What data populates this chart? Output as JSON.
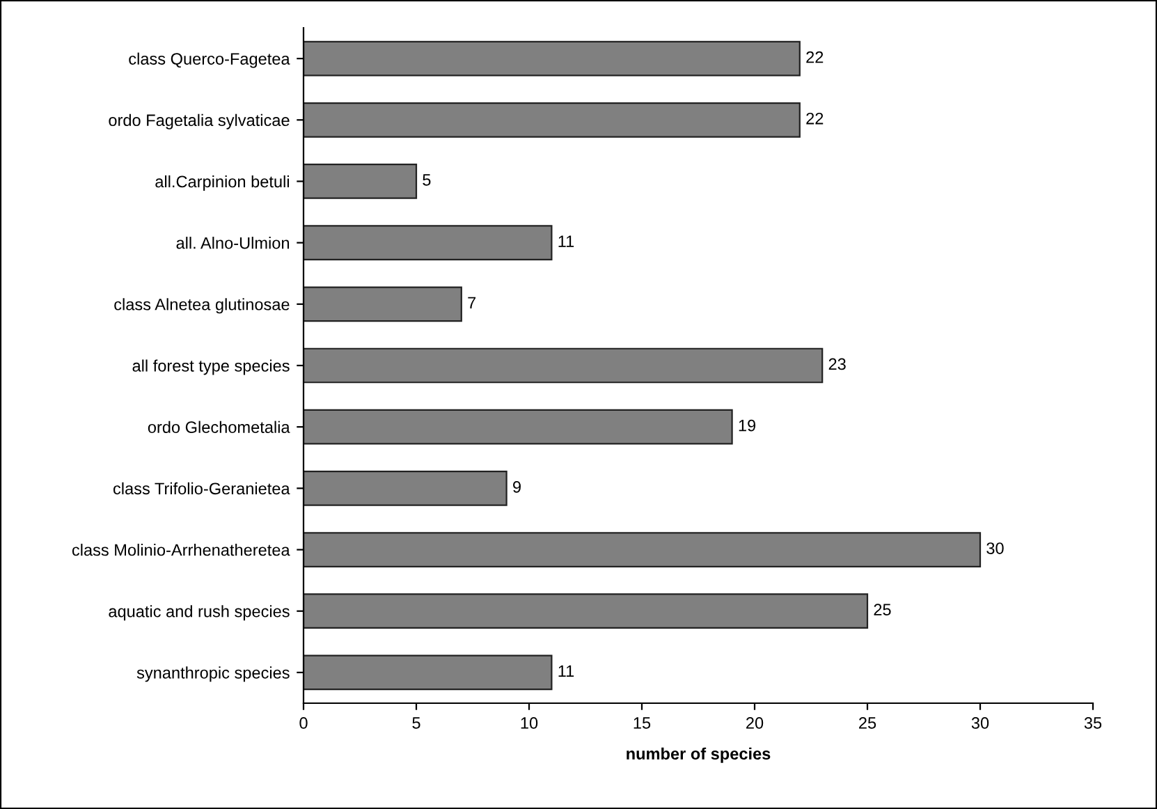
{
  "chart_data": {
    "type": "bar",
    "orientation": "horizontal",
    "xlabel": "number of species",
    "categories": [
      "class Querco-Fagetea",
      "ordo Fagetalia sylvaticae",
      "all.Carpinion betuli",
      "all. Alno-Ulmion",
      "class Alnetea glutinosae",
      "all forest type species",
      "ordo Glechometalia",
      "class Trifolio-Geranietea",
      "class Molinio-Arrhenatheretea",
      "aquatic and rush species",
      "synanthropic species"
    ],
    "values": [
      22,
      22,
      5,
      11,
      7,
      23,
      19,
      9,
      30,
      25,
      11
    ],
    "color": "#808080",
    "xlim": [
      0,
      35
    ],
    "xticks": [
      0,
      5,
      10,
      15,
      20,
      25,
      30,
      35
    ],
    "data_labels": true,
    "grid": false,
    "legend": false
  }
}
